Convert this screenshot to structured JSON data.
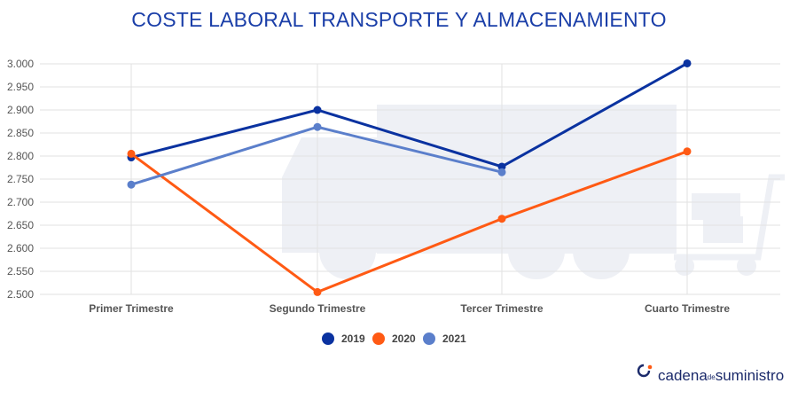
{
  "chart_data": {
    "type": "line",
    "title": "COSTE LABORAL   TRANSPORTE Y ALMACENAMIENTO",
    "categories": [
      "Primer Trimestre",
      "Segundo Trimestre",
      "Tercer Trimestre",
      "Cuarto Trimestre"
    ],
    "series": [
      {
        "name": "2019",
        "color": "#0a32a0",
        "values": [
          2797,
          2900,
          2777,
          3001
        ]
      },
      {
        "name": "2020",
        "color": "#ff5a14",
        "values": [
          2805,
          2505,
          2664,
          2810
        ]
      },
      {
        "name": "2021",
        "color": "#5b7fcb",
        "values": [
          2738,
          2863,
          2765,
          null
        ]
      }
    ],
    "ylim": [
      2500,
      3000
    ],
    "yticks": [
      "2.500",
      "2.550",
      "2.600",
      "2.650",
      "2.700",
      "2.750",
      "2.800",
      "2.850",
      "2.900",
      "2.950",
      "3.000"
    ],
    "grid": true,
    "legend_position": "bottom-center",
    "xlabel": "",
    "ylabel": ""
  },
  "brand": {
    "name_main": "cadena",
    "name_small": "de",
    "name_end": "suministro",
    "icon": "cadena-logo-icon"
  }
}
